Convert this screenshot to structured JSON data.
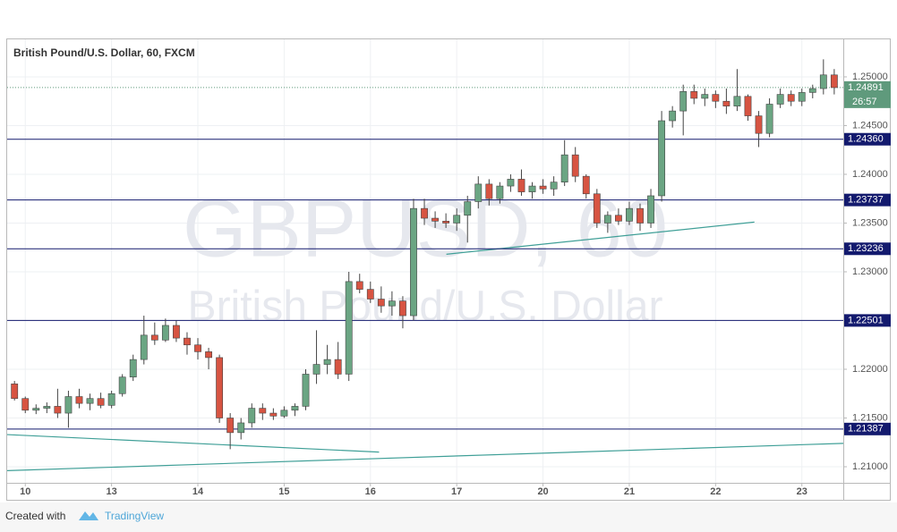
{
  "chart_data": {
    "type": "candlestick",
    "title": "British Pound/U.S. Dollar, 60, FXCM",
    "watermark": [
      "GBPUSD, 60",
      "British Pound/U.S. Dollar"
    ],
    "up_color": "#6ba583",
    "down_color": "#d75442",
    "x": [
      -0.125,
      0,
      0.125,
      0.25,
      0.375,
      0.5,
      0.625,
      0.75,
      0.875,
      1,
      1.125,
      1.25,
      1.375,
      1.5,
      1.625,
      1.75,
      1.875,
      2,
      2.125,
      2.25,
      2.375,
      2.5,
      2.625,
      2.75,
      2.875,
      3,
      3.125,
      3.25,
      3.375,
      3.5,
      3.625,
      3.75,
      3.875,
      4,
      4.125,
      4.25,
      4.375,
      4.5,
      4.625,
      4.75,
      4.875,
      5,
      5.125,
      5.25,
      5.375,
      5.5,
      5.625,
      5.75,
      5.875,
      6,
      6.125,
      6.25,
      6.375,
      6.5,
      6.625,
      6.75,
      6.875,
      7,
      7.125,
      7.25,
      7.375,
      7.5,
      7.625,
      7.75,
      7.875,
      8,
      8.125,
      8.25,
      8.375,
      8.5,
      8.625,
      8.75,
      8.875,
      9,
      9.125,
      9.25,
      9.375
    ],
    "open": [
      1.2185,
      1.217,
      1.2158,
      1.216,
      1.2162,
      1.2155,
      1.2172,
      1.2165,
      1.217,
      1.2163,
      1.2175,
      1.2192,
      1.221,
      1.2235,
      1.223,
      1.2245,
      1.2232,
      1.2225,
      1.2218,
      1.2212,
      1.215,
      1.2135,
      1.2145,
      1.216,
      1.2155,
      1.2152,
      1.2158,
      1.2162,
      1.2195,
      1.2205,
      1.221,
      1.2195,
      1.229,
      1.2282,
      1.2272,
      1.2265,
      1.227,
      1.2255,
      1.2365,
      1.2355,
      1.2352,
      1.235,
      1.2358,
      1.2372,
      1.239,
      1.2375,
      1.2388,
      1.2395,
      1.2382,
      1.2388,
      1.2385,
      1.2392,
      1.242,
      1.2398,
      1.238,
      1.235,
      1.2358,
      1.2352,
      1.2365,
      1.235,
      1.2378,
      1.2455,
      1.2465,
      1.2485,
      1.2478,
      1.2482,
      1.2475,
      1.247,
      1.248,
      1.246,
      1.2442,
      1.2472,
      1.2482,
      1.2475,
      1.2484,
      1.2488,
      1.2502
    ],
    "high": [
      1.2188,
      1.2172,
      1.2164,
      1.2166,
      1.218,
      1.2178,
      1.218,
      1.2175,
      1.2176,
      1.2178,
      1.2195,
      1.2215,
      1.2255,
      1.2248,
      1.2252,
      1.225,
      1.2238,
      1.2232,
      1.2222,
      1.2215,
      1.2155,
      1.215,
      1.2165,
      1.2165,
      1.216,
      1.2162,
      1.2165,
      1.22,
      1.224,
      1.2225,
      1.2228,
      1.23,
      1.2298,
      1.229,
      1.2285,
      1.228,
      1.2275,
      1.2375,
      1.2375,
      1.2362,
      1.236,
      1.2365,
      1.2378,
      1.2398,
      1.2395,
      1.2392,
      1.24,
      1.2405,
      1.2392,
      1.2395,
      1.2398,
      1.2435,
      1.2428,
      1.24,
      1.2385,
      1.2362,
      1.2365,
      1.2372,
      1.237,
      1.2385,
      1.2465,
      1.247,
      1.2492,
      1.2492,
      1.2488,
      1.2486,
      1.2488,
      1.2508,
      1.2482,
      1.2465,
      1.2478,
      1.2488,
      1.2486,
      1.2488,
      1.2492,
      1.2518,
      1.2508
    ],
    "low": [
      1.2168,
      1.2155,
      1.2154,
      1.2155,
      1.215,
      1.214,
      1.216,
      1.2158,
      1.216,
      1.216,
      1.2172,
      1.2188,
      1.2205,
      1.2225,
      1.2228,
      1.2228,
      1.2215,
      1.221,
      1.22,
      1.2145,
      1.2118,
      1.2128,
      1.214,
      1.2148,
      1.2148,
      1.215,
      1.2152,
      1.2158,
      1.2185,
      1.2195,
      1.219,
      1.2188,
      1.2278,
      1.2268,
      1.2258,
      1.2255,
      1.2242,
      1.225,
      1.2348,
      1.2345,
      1.2345,
      1.2342,
      1.233,
      1.2365,
      1.2368,
      1.237,
      1.2382,
      1.2378,
      1.2375,
      1.238,
      1.2378,
      1.2388,
      1.2392,
      1.2375,
      1.2345,
      1.234,
      1.2348,
      1.2348,
      1.2342,
      1.2345,
      1.2372,
      1.2448,
      1.244,
      1.2472,
      1.247,
      1.2468,
      1.2462,
      1.2465,
      1.2455,
      1.2428,
      1.2438,
      1.2468,
      1.247,
      1.247,
      1.2478,
      1.2482,
      1.2482
    ],
    "close": [
      1.217,
      1.2158,
      1.216,
      1.2162,
      1.2155,
      1.2172,
      1.2165,
      1.217,
      1.2163,
      1.2175,
      1.2192,
      1.221,
      1.2235,
      1.223,
      1.2245,
      1.2232,
      1.2225,
      1.2218,
      1.2212,
      1.215,
      1.2135,
      1.2145,
      1.216,
      1.2155,
      1.2152,
      1.2158,
      1.2162,
      1.2195,
      1.2205,
      1.221,
      1.2195,
      1.229,
      1.2282,
      1.2272,
      1.2265,
      1.227,
      1.2255,
      1.2365,
      1.2355,
      1.2352,
      1.235,
      1.2358,
      1.2372,
      1.239,
      1.2375,
      1.2388,
      1.2395,
      1.2382,
      1.2388,
      1.2385,
      1.2392,
      1.242,
      1.2398,
      1.238,
      1.235,
      1.2358,
      1.2352,
      1.2365,
      1.235,
      1.2378,
      1.2455,
      1.2465,
      1.2485,
      1.2478,
      1.2482,
      1.2475,
      1.247,
      1.248,
      1.246,
      1.2442,
      1.2472,
      1.2482,
      1.2475,
      1.2484,
      1.2488,
      1.2502,
      1.2489
    ],
    "xlim": [
      -0.21,
      9.48
    ],
    "xticks": [
      {
        "value": 0,
        "label": "10"
      },
      {
        "value": 1,
        "label": "13"
      },
      {
        "value": 2,
        "label": "14"
      },
      {
        "value": 3,
        "label": "15"
      },
      {
        "value": 4,
        "label": "16"
      },
      {
        "value": 5,
        "label": "17"
      },
      {
        "value": 6,
        "label": "20"
      },
      {
        "value": 7,
        "label": "21"
      },
      {
        "value": 8,
        "label": "22"
      },
      {
        "value": 9,
        "label": "23"
      }
    ],
    "ylim": [
      1.20835,
      1.25385
    ],
    "yticks": [
      {
        "value": 1.21,
        "label": "1.21000"
      },
      {
        "value": 1.215,
        "label": "1.21500"
      },
      {
        "value": 1.22,
        "label": "1.22000"
      },
      {
        "value": 1.225,
        "label": "1.22500"
      },
      {
        "value": 1.23,
        "label": "1.23000"
      },
      {
        "value": 1.235,
        "label": "1.23500"
      },
      {
        "value": 1.24,
        "label": "1.24000"
      },
      {
        "value": 1.245,
        "label": "1.24500"
      },
      {
        "value": 1.25,
        "label": "1.25000"
      }
    ],
    "grid": true,
    "horizontal_lines": [
      {
        "value": 1.2436,
        "label": "1.24360"
      },
      {
        "value": 1.23737,
        "label": "1.23737"
      },
      {
        "value": 1.23236,
        "label": "1.23236"
      },
      {
        "value": 1.22501,
        "label": "1.22501"
      },
      {
        "value": 1.21387,
        "label": "1.21387"
      }
    ],
    "horizontal_line_color": "#131a6e",
    "last_price": {
      "value": 1.24891,
      "label": "1.24891",
      "countdown": "26:57",
      "color": "#5f9a7c"
    },
    "trend_lines": [
      {
        "x": [
          -0.21,
          4.1
        ],
        "y": [
          1.2133,
          1.2115
        ]
      },
      {
        "x": [
          -0.21,
          9.48
        ],
        "y": [
          1.2096,
          1.2124
        ]
      },
      {
        "x": [
          4.88,
          8.45
        ],
        "y": [
          1.2318,
          1.2351
        ]
      }
    ],
    "trend_line_color": "#3f9f97"
  },
  "footer": {
    "prefix": "Created with",
    "brand": "TradingView"
  }
}
